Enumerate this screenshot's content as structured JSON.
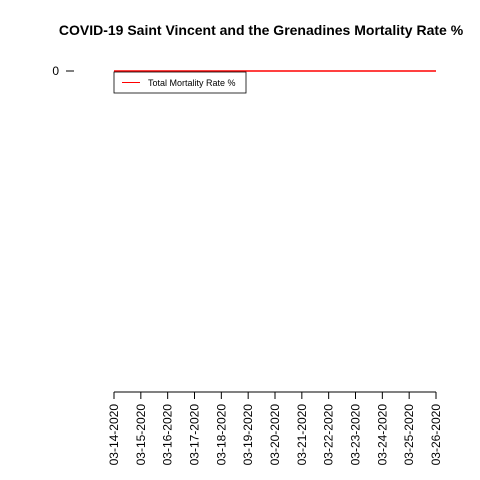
{
  "chart_data": {
    "type": "line",
    "title": "COVID-19 Saint Vincent and the Grenadines Mortality Rate %",
    "xlabel": "",
    "ylabel": "",
    "x": [
      "03-14-2020",
      "03-15-2020",
      "03-16-2020",
      "03-17-2020",
      "03-18-2020",
      "03-19-2020",
      "03-20-2020",
      "03-21-2020",
      "03-22-2020",
      "03-23-2020",
      "03-24-2020",
      "03-25-2020",
      "03-26-2020"
    ],
    "series": [
      {
        "name": "Total Mortality Rate %",
        "color": "#ff0000",
        "values": [
          0,
          0,
          0,
          0,
          0,
          0,
          0,
          0,
          0,
          0,
          0,
          0,
          0
        ]
      }
    ],
    "y_ticks": [
      0
    ],
    "grid": false,
    "legend": "top-left"
  }
}
